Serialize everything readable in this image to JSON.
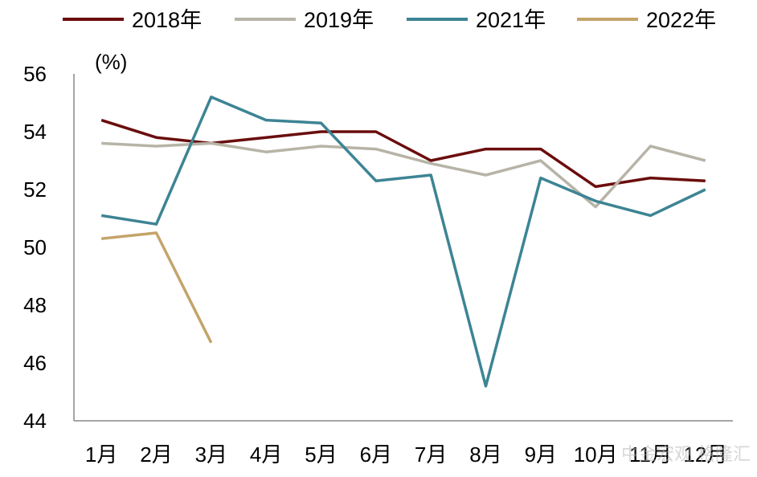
{
  "chart_data": {
    "type": "line",
    "title": "",
    "xlabel": "",
    "ylabel": "(%)",
    "categories": [
      "1月",
      "2月",
      "3月",
      "4月",
      "5月",
      "6月",
      "7月",
      "8月",
      "9月",
      "10月",
      "11月",
      "12月"
    ],
    "ylim": [
      44,
      56
    ],
    "yticks": [
      44,
      46,
      48,
      50,
      52,
      54,
      56
    ],
    "grid": false,
    "legend_position": "top",
    "series": [
      {
        "name": "2018年",
        "color": "#6b0d0d",
        "values": [
          54.4,
          53.8,
          53.6,
          53.8,
          54.0,
          54.0,
          53.0,
          53.4,
          53.4,
          52.1,
          52.4,
          52.3
        ]
      },
      {
        "name": "2019年",
        "color": "#b7b4a7",
        "values": [
          53.6,
          53.5,
          53.6,
          53.3,
          53.5,
          53.4,
          52.9,
          52.5,
          53.0,
          51.4,
          53.5,
          53.0
        ]
      },
      {
        "name": "2021年",
        "color": "#3d8494",
        "values": [
          51.1,
          50.8,
          55.2,
          54.4,
          54.3,
          52.3,
          52.5,
          45.2,
          52.4,
          51.6,
          51.1,
          52.0
        ]
      },
      {
        "name": "2022年",
        "color": "#c4a46a",
        "values": [
          50.3,
          50.5,
          46.7,
          null,
          null,
          null,
          null,
          null,
          null,
          null,
          null,
          null
        ]
      }
    ]
  },
  "watermark": "中金宏观 格隆汇"
}
